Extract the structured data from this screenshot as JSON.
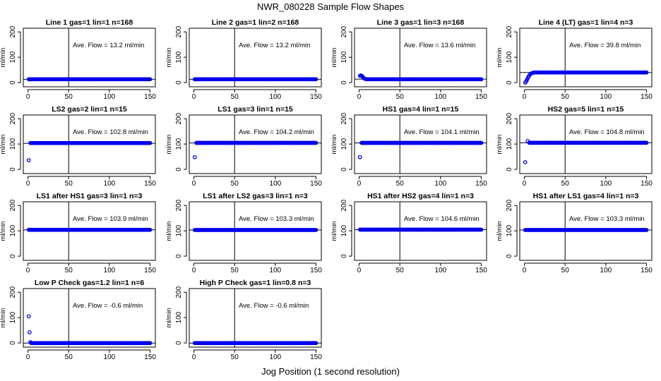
{
  "figure_title": "NWR_080228  Sample Flow Shapes",
  "shared_xlabel": "Jog Position (1 second resolution)",
  "shared_ylabel": "ml/min",
  "point_color": "#0000ee",
  "chart_data": [
    {
      "type": "scatter",
      "title": "Line 1 gas=1 lin=1 n=168",
      "annotation": "Ave. Flow =  13.2  ml/min",
      "xlim": [
        0,
        150
      ],
      "ylim": [
        0,
        200
      ],
      "xticks": [
        0,
        50,
        100,
        150
      ],
      "yticks": [
        0,
        100,
        200
      ],
      "vline": 50,
      "hline": 13.2,
      "shape": "flat",
      "series": [
        {
          "name": "flow",
          "level": 13.2,
          "x_range": [
            1,
            150
          ]
        }
      ]
    },
    {
      "type": "scatter",
      "title": "Line 2 gas=1 lin=2 n=168",
      "annotation": "Ave. Flow =  13.2  ml/min",
      "xlim": [
        0,
        150
      ],
      "ylim": [
        0,
        200
      ],
      "xticks": [
        0,
        50,
        100,
        150
      ],
      "yticks": [
        0,
        100,
        200
      ],
      "vline": 50,
      "hline": 13.2,
      "shape": "flat",
      "series": [
        {
          "name": "flow",
          "level": 13.2,
          "x_range": [
            1,
            150
          ]
        }
      ]
    },
    {
      "type": "scatter",
      "title": "Line 3 gas=1 lin=3 n=168",
      "annotation": "Ave. Flow =  13.6  ml/min",
      "xlim": [
        0,
        150
      ],
      "ylim": [
        0,
        200
      ],
      "xticks": [
        0,
        50,
        100,
        150
      ],
      "yticks": [
        0,
        100,
        200
      ],
      "vline": 50,
      "hline": 13.6,
      "shape": "bump",
      "series": [
        {
          "name": "flow",
          "level": 13.2,
          "start": [
            [
              1,
              27
            ],
            [
              2,
              28
            ],
            [
              3,
              27
            ],
            [
              4,
              24
            ],
            [
              5,
              20
            ],
            [
              6,
              17
            ],
            [
              7,
              15
            ],
            [
              8,
              14
            ]
          ],
          "x_range": [
            9,
            150
          ]
        }
      ]
    },
    {
      "type": "scatter",
      "title": "Line 4 (LT) gas=1 lin=4 n=3",
      "annotation": "Ave. Flow =  39.8  ml/min",
      "xlim": [
        0,
        150
      ],
      "ylim": [
        0,
        200
      ],
      "xticks": [
        0,
        50,
        100,
        150
      ],
      "yticks": [
        0,
        100,
        200
      ],
      "vline": 50,
      "hline": 39.8,
      "shape": "rise",
      "series": [
        {
          "name": "flow",
          "level": 40,
          "start": [
            [
              1,
              0
            ],
            [
              2,
              4
            ],
            [
              3,
              10
            ],
            [
              4,
              17
            ],
            [
              5,
              23
            ],
            [
              6,
              28
            ],
            [
              7,
              32
            ],
            [
              8,
              35
            ],
            [
              9,
              37
            ],
            [
              10,
              38
            ],
            [
              11,
              39
            ]
          ],
          "x_range": [
            12,
            150
          ]
        }
      ]
    },
    {
      "type": "scatter",
      "title": "LS2 gas=2 lin=1 n=15",
      "annotation": "Ave. Flow =  102.8  ml/min",
      "xlim": [
        0,
        150
      ],
      "ylim": [
        0,
        200
      ],
      "xticks": [
        0,
        50,
        100,
        150
      ],
      "yticks": [
        0,
        100,
        200
      ],
      "vline": 50,
      "hline": 102.8,
      "shape": "flat",
      "series": [
        {
          "name": "flow",
          "level": 104,
          "start": [
            [
              1,
              36
            ]
          ],
          "x_range": [
            3,
            150
          ]
        }
      ]
    },
    {
      "type": "scatter",
      "title": "LS1 gas=3 lin=1 n=15",
      "annotation": "Ave. Flow =  104.2  ml/min",
      "xlim": [
        0,
        150
      ],
      "ylim": [
        0,
        200
      ],
      "xticks": [
        0,
        50,
        100,
        150
      ],
      "yticks": [
        0,
        100,
        200
      ],
      "vline": 50,
      "hline": 104.2,
      "shape": "flat",
      "series": [
        {
          "name": "flow",
          "level": 104.5,
          "start": [
            [
              1,
              48
            ]
          ],
          "x_range": [
            3,
            150
          ]
        }
      ]
    },
    {
      "type": "scatter",
      "title": "HS1 gas=4 lin=1 n=15",
      "annotation": "Ave. Flow =  104.1  ml/min",
      "xlim": [
        0,
        150
      ],
      "ylim": [
        0,
        200
      ],
      "xticks": [
        0,
        50,
        100,
        150
      ],
      "yticks": [
        0,
        100,
        200
      ],
      "vline": 50,
      "hline": 104.1,
      "shape": "flat",
      "series": [
        {
          "name": "flow",
          "level": 104.5,
          "start": [
            [
              1,
              48
            ]
          ],
          "x_range": [
            3,
            150
          ]
        }
      ]
    },
    {
      "type": "scatter",
      "title": "HS2 gas=5 lin=1 n=15",
      "annotation": "Ave. Flow =  104.8  ml/min",
      "xlim": [
        0,
        150
      ],
      "ylim": [
        0,
        200
      ],
      "xticks": [
        0,
        50,
        100,
        150
      ],
      "yticks": [
        0,
        100,
        200
      ],
      "vline": 50,
      "hline": 104.8,
      "shape": "flat",
      "series": [
        {
          "name": "flow",
          "level": 105,
          "start": [
            [
              1,
              28
            ],
            [
              4,
              112
            ]
          ],
          "x_range": [
            6,
            150
          ]
        }
      ]
    },
    {
      "type": "scatter",
      "title": "LS1 after HS1 gas=3 lin=1 n=3",
      "annotation": "Ave. Flow =  103.9  ml/min",
      "xlim": [
        0,
        150
      ],
      "ylim": [
        0,
        200
      ],
      "xticks": [
        0,
        50,
        100,
        150
      ],
      "yticks": [
        0,
        100,
        200
      ],
      "vline": 50,
      "hline": 103.9,
      "shape": "flat",
      "series": [
        {
          "name": "flow",
          "level": 103.9,
          "x_range": [
            1,
            150
          ]
        }
      ]
    },
    {
      "type": "scatter",
      "title": "LS1 after LS2 gas=3 lin=1 n=3",
      "annotation": "Ave. Flow =  103.3  ml/min",
      "xlim": [
        0,
        150
      ],
      "ylim": [
        0,
        200
      ],
      "xticks": [
        0,
        50,
        100,
        150
      ],
      "yticks": [
        0,
        100,
        200
      ],
      "vline": 50,
      "hline": 103.3,
      "shape": "flat",
      "series": [
        {
          "name": "flow",
          "level": 103.3,
          "x_range": [
            1,
            150
          ]
        }
      ]
    },
    {
      "type": "scatter",
      "title": "HS1 after HS2 gas=4 lin=1 n=3",
      "annotation": "Ave. Flow =  104.6  ml/min",
      "xlim": [
        0,
        150
      ],
      "ylim": [
        0,
        200
      ],
      "xticks": [
        0,
        50,
        100,
        150
      ],
      "yticks": [
        0,
        100,
        200
      ],
      "vline": 50,
      "hline": 104.6,
      "shape": "flat",
      "series": [
        {
          "name": "flow",
          "level": 104.6,
          "x_range": [
            1,
            150
          ]
        }
      ]
    },
    {
      "type": "scatter",
      "title": "HS1 after LS1 gas=4 lin=1 n=3",
      "annotation": "Ave. Flow =  103.3  ml/min",
      "xlim": [
        0,
        150
      ],
      "ylim": [
        0,
        200
      ],
      "xticks": [
        0,
        50,
        100,
        150
      ],
      "yticks": [
        0,
        100,
        200
      ],
      "vline": 50,
      "hline": 103.3,
      "shape": "flat",
      "series": [
        {
          "name": "flow",
          "level": 103.3,
          "x_range": [
            1,
            150
          ]
        }
      ]
    },
    {
      "type": "scatter",
      "title": "Low P Check gas=1.2 lin=1 n=6",
      "annotation": "Ave. Flow =  -0.6  ml/min",
      "xlim": [
        0,
        150
      ],
      "ylim": [
        0,
        200
      ],
      "xticks": [
        0,
        50,
        100,
        150
      ],
      "yticks": [
        0,
        100,
        200
      ],
      "vline": 50,
      "hline": -0.6,
      "shape": "decay",
      "series": [
        {
          "name": "flow",
          "level": -0.6,
          "start": [
            [
              1,
              105
            ],
            [
              2,
              42
            ],
            [
              3,
              3
            ]
          ],
          "x_range": [
            4,
            150
          ]
        }
      ]
    },
    {
      "type": "scatter",
      "title": "High P Check gas=1 lin=0.8 n=3",
      "annotation": "Ave. Flow =  -0.6  ml/min",
      "xlim": [
        0,
        150
      ],
      "ylim": [
        0,
        200
      ],
      "xticks": [
        0,
        50,
        100,
        150
      ],
      "yticks": [
        0,
        100,
        200
      ],
      "vline": 50,
      "hline": -0.6,
      "shape": "flat",
      "series": [
        {
          "name": "flow",
          "level": -0.6,
          "x_range": [
            1,
            150
          ]
        }
      ]
    }
  ]
}
